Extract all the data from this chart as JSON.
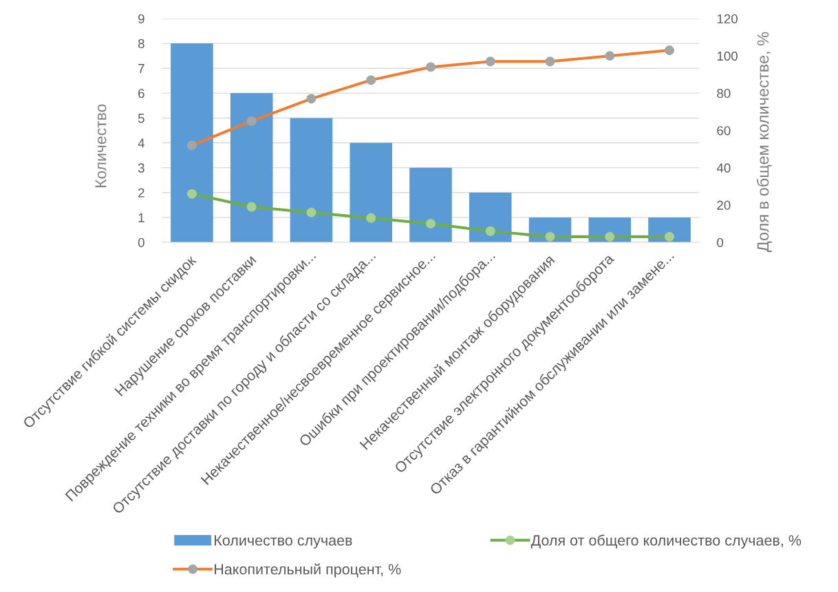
{
  "chart_data": {
    "type": "bar",
    "categories": [
      "Отсутствие гибкой системы скидок",
      "Нарушение сроков поставки",
      "Повреждение техники во время транспортировки...",
      "Отсутствие доставки по городу и области со склада...",
      "Некачественное/несвоевременное сервисное...",
      "Ошибки при проектировании/подбора...",
      "Некачественный монтаж оборудования",
      "Отсутствие электронного документооборота",
      "Отказ в гарантийном обслуживании или замене..."
    ],
    "series": [
      {
        "name": "Количество случаев",
        "color": "#5b9bd5",
        "values": [
          8,
          6,
          5,
          4,
          3,
          2,
          1,
          1,
          1
        ]
      },
      {
        "name": "Доля от общего количество случаев, %",
        "type": "line",
        "axis": "y2",
        "color": "#70ad47",
        "colors": [
          "#a9d18e",
          "#a9d18e",
          "#a9d18e",
          "#a9d18e",
          "#a9d18e",
          "#a9d18e",
          "#a9d18e",
          "#a9d18e",
          "#a9d18e"
        ],
        "values": [
          26,
          19,
          16,
          13,
          10,
          6,
          3,
          3,
          3
        ]
      },
      {
        "name": "Накопительный процент, %",
        "type": "line",
        "axis": "y2",
        "color": "#ed7d31",
        "colors": [
          "#a5a5a5",
          "#a5a5a5",
          "#a5a5a5",
          "#a5a5a5",
          "#a5a5a5",
          "#a5a5a5",
          "#a5a5a5",
          "#a5a5a5",
          "#a5a5a5"
        ],
        "values": [
          52,
          65,
          77,
          87,
          94,
          97,
          97,
          100,
          103
        ]
      }
    ],
    "ylabel": "Количество",
    "y2label": "Доля в общем количестве, %",
    "ylim": [
      0,
      9
    ],
    "yticks": [
      0,
      1,
      2,
      3,
      4,
      5,
      6,
      7,
      8,
      9
    ],
    "y2lim": [
      0,
      120
    ],
    "y2ticks": [
      0,
      20,
      40,
      60,
      80,
      100,
      120
    ],
    "grid": "y",
    "legend": "bottom",
    "marker": "circle",
    "line_style": "solid"
  }
}
